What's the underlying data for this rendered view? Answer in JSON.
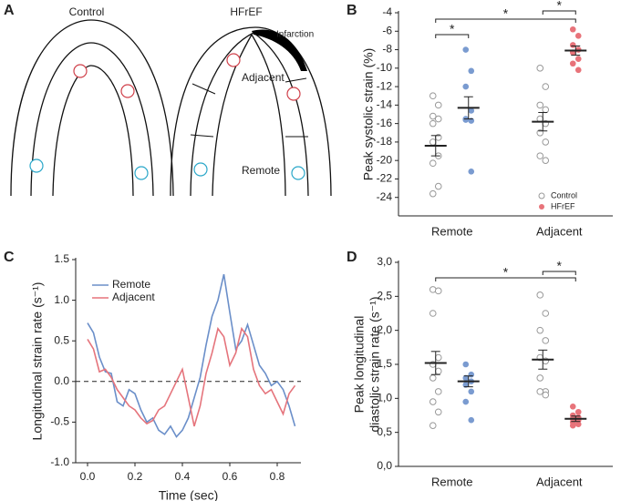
{
  "diagram": {
    "panel": "A",
    "left_title": "Control",
    "right_title": "HFrEF",
    "infarction": "Infarction",
    "adjacent": "Adjacent",
    "remote": "Remote"
  },
  "chart_data": [
    {
      "type": "dot",
      "panel": "B",
      "ylabel": "Peak systolic strain (%)",
      "categories": [
        "Remote",
        "Adjacent"
      ],
      "ylim": [
        -26,
        -4
      ],
      "yticks": [
        -4,
        -6,
        -8,
        -10,
        -12,
        -14,
        -16,
        -18,
        -20,
        -22,
        -24
      ],
      "legend": "lower right",
      "series": [
        {
          "name": "Control",
          "marker": "open",
          "color": "#999999",
          "values": [
            [
              -13,
              -14,
              -15.2,
              -15.5,
              -16,
              -17.5,
              -18,
              -19.5,
              -20.3,
              -22.8,
              -23.6
            ],
            [
              -10,
              -12,
              -14,
              -14.5,
              -15.5,
              -16,
              -17,
              -18,
              -19.5,
              -20
            ]
          ],
          "means": [
            -18.4,
            -15.8
          ],
          "sem": [
            1.1,
            1.0
          ]
        },
        {
          "name": "HFrEF",
          "marker": "filled",
          "color": "#e8737a",
          "colors": [
            "#7a9bd0",
            "#e8737a"
          ],
          "values": [
            [
              -8,
              -10.3,
              -12,
              -14.6,
              -15.6,
              -15.7,
              -15.5,
              -21.2
            ],
            [
              -5.8,
              -6.5,
              -7.5,
              -8,
              -8.3,
              -9,
              -9.5,
              -10.2
            ]
          ],
          "means": [
            -14.3,
            -8.1
          ],
          "sem": [
            1.2,
            0.5
          ]
        }
      ],
      "significance": [
        {
          "label": "*"
        },
        {
          "label": "*"
        },
        {
          "label": "*"
        }
      ]
    },
    {
      "type": "line",
      "panel": "C",
      "ylabel": "Longitudinal strain rate (s⁻¹)",
      "xlabel": "Time (sec)",
      "xlim": [
        -0.05,
        0.9
      ],
      "xticks": [
        {
          "value": 0,
          "label": "0.0"
        },
        0.2,
        0.4,
        0.6,
        0.8
      ],
      "ylim": [
        -1,
        1.5
      ],
      "yticks": [
        {
          "value": -1,
          "label": "-1.0"
        },
        -0.5,
        {
          "value": 0,
          "label": "0.0"
        },
        0.5,
        {
          "value": 1,
          "label": "1.0"
        },
        1.5
      ],
      "reference_line": 0,
      "legend": "upper left",
      "x": [
        0,
        0.025,
        0.05,
        0.075,
        0.1,
        0.125,
        0.15,
        0.175,
        0.2,
        0.225,
        0.25,
        0.275,
        0.3,
        0.325,
        0.35,
        0.375,
        0.4,
        0.425,
        0.45,
        0.475,
        0.5,
        0.525,
        0.55,
        0.575,
        0.6,
        0.625,
        0.65,
        0.675,
        0.7,
        0.725,
        0.75,
        0.775,
        0.8,
        0.825,
        0.85,
        0.875
      ],
      "series": [
        {
          "name": "Remote",
          "color": "#6b8fc9",
          "values": [
            0.72,
            0.6,
            0.3,
            0.12,
            0.1,
            -0.25,
            -0.3,
            -0.1,
            -0.15,
            -0.35,
            -0.5,
            -0.45,
            -0.6,
            -0.65,
            -0.55,
            -0.68,
            -0.6,
            -0.45,
            -0.2,
            0.05,
            0.45,
            0.8,
            1.0,
            1.32,
            0.85,
            0.4,
            0.5,
            0.7,
            0.45,
            0.2,
            0.1,
            -0.05,
            0.0,
            -0.1,
            -0.3,
            -0.55
          ]
        },
        {
          "name": "Adjacent",
          "color": "#e5747c",
          "values": [
            0.52,
            0.4,
            0.12,
            0.15,
            0.05,
            -0.1,
            -0.2,
            -0.3,
            -0.35,
            -0.45,
            -0.52,
            -0.48,
            -0.35,
            -0.3,
            -0.15,
            0.0,
            0.15,
            -0.2,
            -0.55,
            -0.3,
            0.1,
            0.35,
            0.65,
            0.55,
            0.2,
            0.35,
            0.65,
            0.55,
            0.15,
            -0.05,
            -0.15,
            -0.1,
            -0.25,
            -0.4,
            -0.15,
            -0.05
          ]
        }
      ]
    },
    {
      "type": "dot",
      "panel": "D",
      "ylabel": [
        "Peak longitudinal",
        "diastolic strain rate (s⁻¹)"
      ],
      "categories": [
        "Remote",
        "Adjacent"
      ],
      "ylim": [
        0,
        3.0
      ],
      "yticks": [
        {
          "value": 0,
          "label": "0,0"
        },
        {
          "value": 0.5,
          "label": "0,5"
        },
        {
          "value": 1,
          "label": "1,0"
        },
        {
          "value": 1.5,
          "label": "1,5"
        },
        {
          "value": 2,
          "label": "2,0"
        },
        {
          "value": 2.5,
          "label": "2,5"
        },
        {
          "value": 3,
          "label": "3,0"
        }
      ],
      "series": [
        {
          "marker": "open",
          "color": "#999999",
          "values": [
            [
              2.6,
              2.58,
              2.25,
              1.6,
              1.5,
              1.4,
              1.3,
              1.1,
              0.95,
              0.8,
              0.6
            ],
            [
              2.52,
              2.25,
              2.0,
              1.85,
              1.6,
              1.55,
              1.3,
              1.1,
              1.1,
              1.05
            ]
          ],
          "means": [
            1.52,
            1.57
          ],
          "sem": [
            0.17,
            0.14
          ]
        },
        {
          "marker": "filled",
          "color": "#e8737a",
          "colors": [
            "#7a9bd0",
            "#e8737a"
          ],
          "values": [
            [
              1.5,
              1.35,
              1.3,
              1.25,
              1.2,
              1.1,
              0.95,
              0.68
            ],
            [
              0.88,
              0.8,
              0.75,
              0.72,
              0.7,
              0.68,
              0.65,
              0.62,
              0.6
            ]
          ],
          "means": [
            1.25,
            0.7
          ],
          "sem": [
            0.08,
            0.04
          ]
        }
      ],
      "significance": [
        {
          "label": "*"
        },
        {
          "label": "*"
        }
      ]
    }
  ]
}
